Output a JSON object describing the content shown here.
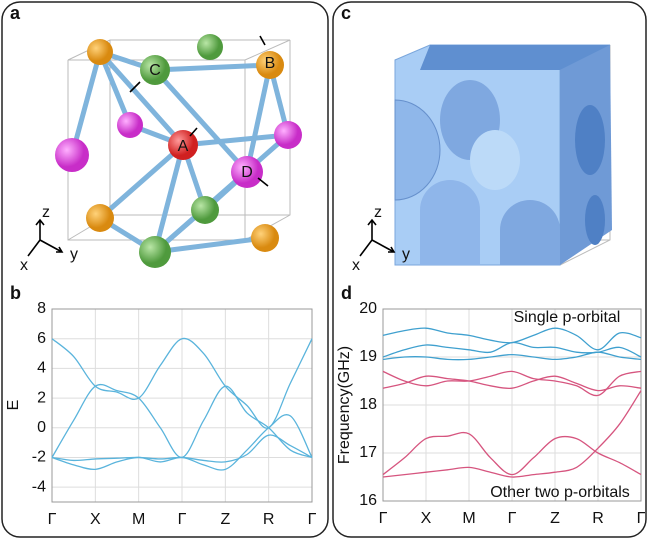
{
  "figure": {
    "panel_a": {
      "label": "a",
      "atoms": [
        "A",
        "B",
        "C",
        "D"
      ],
      "axes": [
        "x",
        "y",
        "z"
      ]
    },
    "panel_b": {
      "label": "b"
    },
    "panel_c": {
      "label": "c",
      "axes": [
        "x",
        "y",
        "z"
      ]
    },
    "panel_d": {
      "label": "d"
    }
  },
  "chart_data": [
    {
      "type": "line",
      "ylabel": "E",
      "x": [
        0,
        0.5,
        1,
        1.5,
        2,
        2.5,
        3,
        3.5,
        4,
        4.5,
        5,
        5.5,
        6
      ],
      "xlim": [
        0,
        6
      ],
      "xticks": [
        {
          "value": 0,
          "label": "Γ"
        },
        {
          "value": 1,
          "label": "X"
        },
        {
          "value": 2,
          "label": "M"
        },
        {
          "value": 3,
          "label": "Γ"
        },
        {
          "value": 4,
          "label": "Z"
        },
        {
          "value": 5,
          "label": "R"
        },
        {
          "value": 6,
          "label": "Γ"
        }
      ],
      "ylim": [
        -5,
        8
      ],
      "yticks": [
        -4,
        -2,
        0,
        2,
        4,
        6,
        8
      ],
      "grid": true,
      "series": [
        {
          "color": "#5ab4dc",
          "values": [
            6,
            4.8,
            2.8,
            2.4,
            2,
            4.2,
            6,
            5,
            2.8,
            1.5,
            0,
            3,
            6
          ]
        },
        {
          "color": "#5ab4dc",
          "values": [
            -2,
            0.5,
            2.8,
            2.5,
            2,
            0,
            -2,
            0.5,
            2.8,
            1,
            0,
            -1.5,
            -2
          ]
        },
        {
          "color": "#5ab4dc",
          "values": [
            -2,
            -2.5,
            -2.8,
            -2.3,
            -2,
            -2.3,
            -2,
            -2.5,
            -2.8,
            -1.5,
            0,
            0.8,
            -2
          ]
        },
        {
          "color": "#5ab4dc",
          "values": [
            -2,
            -2.2,
            -2.1,
            -2.05,
            -2,
            -2.1,
            -2,
            -2.2,
            -2.3,
            -1.8,
            -0.5,
            -1.2,
            -2
          ]
        }
      ]
    },
    {
      "type": "line",
      "ylabel": "Frequency(GHz)",
      "annotations": [
        "Single p-orbital",
        "Other two p-orbitals"
      ],
      "x": [
        0,
        0.5,
        1,
        1.5,
        2,
        2.5,
        3,
        3.5,
        4,
        4.5,
        5,
        5.5,
        6
      ],
      "xlim": [
        0,
        6
      ],
      "xticks": [
        {
          "value": 0,
          "label": "Γ"
        },
        {
          "value": 1,
          "label": "X"
        },
        {
          "value": 2,
          "label": "M"
        },
        {
          "value": 3,
          "label": "Γ"
        },
        {
          "value": 4,
          "label": "Z"
        },
        {
          "value": 5,
          "label": "R"
        },
        {
          "value": 6,
          "label": "Γ"
        }
      ],
      "ylim": [
        16,
        20
      ],
      "yticks": [
        16,
        17,
        18,
        19,
        20
      ],
      "grid": true,
      "series": [
        {
          "color": "#3fa0cf",
          "values": [
            19.45,
            19.55,
            19.6,
            19.5,
            19.45,
            19.35,
            19.3,
            19.45,
            19.6,
            19.45,
            19.15,
            19.5,
            19.4
          ]
        },
        {
          "color": "#3fa0cf",
          "values": [
            19.0,
            19.15,
            19.25,
            19.2,
            19.15,
            19.1,
            19.3,
            19.2,
            19.2,
            19.1,
            19.1,
            19.2,
            19.0
          ]
        },
        {
          "color": "#3fa0cf",
          "values": [
            18.95,
            19.0,
            19.0,
            18.95,
            18.95,
            19.0,
            19.05,
            19.0,
            18.95,
            19.0,
            19.1,
            19.0,
            18.95
          ]
        },
        {
          "color": "#d6557f",
          "values": [
            18.7,
            18.5,
            18.4,
            18.5,
            18.5,
            18.6,
            18.7,
            18.55,
            18.5,
            18.4,
            18.2,
            18.6,
            18.7
          ]
        },
        {
          "color": "#d6557f",
          "values": [
            18.35,
            18.45,
            18.6,
            18.55,
            18.5,
            18.4,
            18.35,
            18.5,
            18.6,
            18.45,
            18.3,
            18.4,
            18.35
          ]
        },
        {
          "color": "#d6557f",
          "values": [
            16.55,
            16.9,
            17.3,
            17.35,
            17.4,
            16.9,
            16.55,
            16.9,
            17.3,
            17.3,
            17.0,
            16.8,
            16.55
          ]
        },
        {
          "color": "#d6557f",
          "values": [
            16.5,
            16.55,
            16.6,
            16.65,
            16.7,
            16.6,
            16.5,
            16.55,
            16.6,
            16.7,
            17.1,
            17.6,
            18.3
          ]
        }
      ]
    }
  ]
}
